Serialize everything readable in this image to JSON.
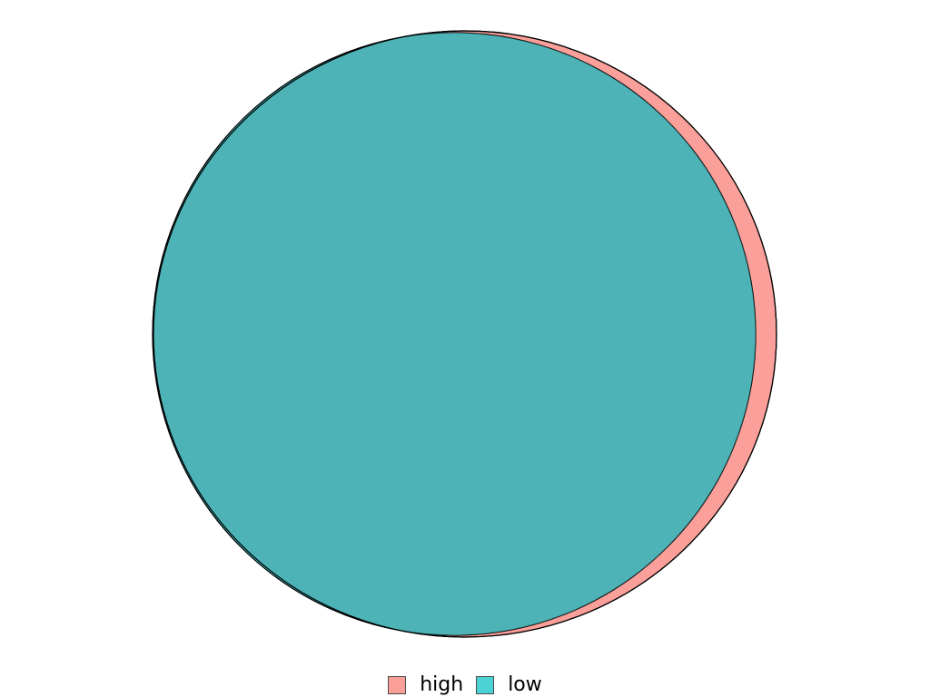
{
  "diagram": {
    "type": "euler",
    "sets": [
      {
        "name": "high",
        "fill": "#f8766d",
        "opacity": 0.7
      },
      {
        "name": "low",
        "fill": "#00bfc4",
        "opacity": 0.7
      }
    ],
    "overlap_fill": "#4db3b7",
    "stroke": "#000000"
  },
  "legend": {
    "entries": [
      {
        "label": "high",
        "color": "#f8766d"
      },
      {
        "label": "low",
        "color": "#00bfc4"
      }
    ]
  }
}
